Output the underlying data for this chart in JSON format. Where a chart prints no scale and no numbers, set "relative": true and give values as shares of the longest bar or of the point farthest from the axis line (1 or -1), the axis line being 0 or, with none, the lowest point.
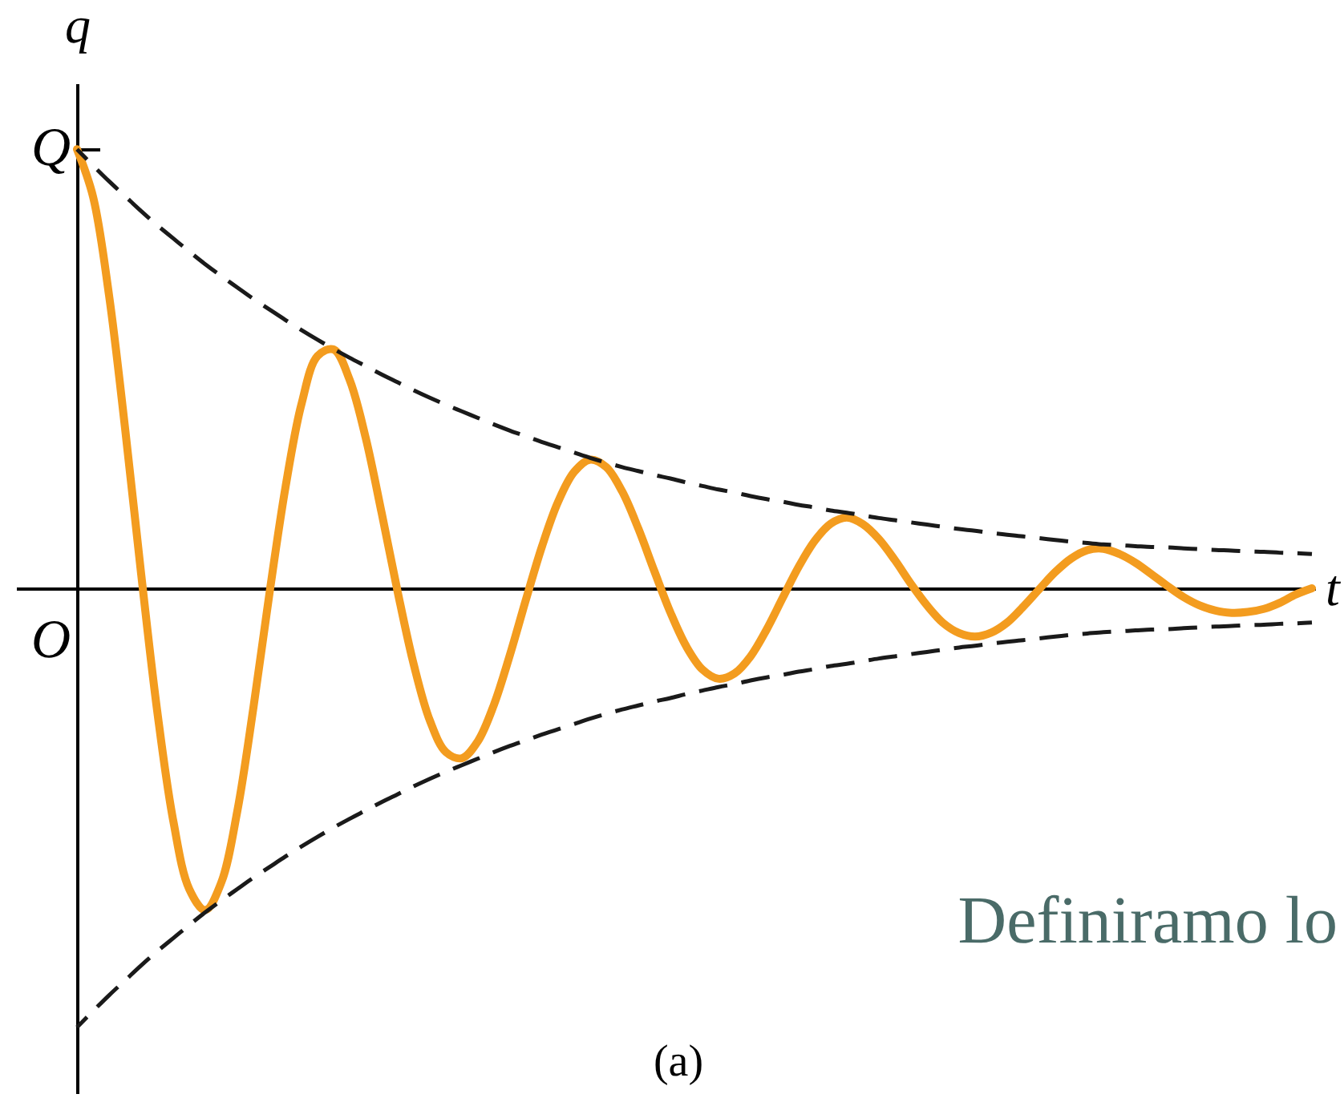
{
  "chart_data": {
    "type": "line",
    "relative": true,
    "xlabel": "t",
    "ylabel": "q",
    "categories": [
      null,
      null,
      null,
      null,
      null,
      null,
      null,
      null,
      null,
      null,
      null,
      null,
      null,
      null,
      null,
      null,
      null,
      null,
      null,
      null,
      null,
      null,
      null,
      null,
      null,
      null,
      null,
      null,
      null,
      null,
      null,
      null,
      null,
      null,
      null,
      null,
      null,
      null,
      null,
      null,
      null,
      null,
      null,
      null,
      null,
      null,
      null,
      null,
      null,
      null,
      null,
      null,
      null,
      null,
      null,
      null,
      null,
      null,
      null,
      null,
      null,
      null,
      null,
      null,
      null,
      null,
      null,
      null,
      null,
      null,
      null,
      null,
      null,
      null,
      null,
      null,
      null,
      null
    ],
    "series": [
      {
        "color": "#f39c1f",
        "line_style": "solid",
        "values": [
          1.0,
          0.892,
          0.667,
          0.364,
          0.033,
          -0.279,
          -0.529,
          -0.685,
          -0.733,
          -0.67,
          -0.507,
          -0.272,
          -0.012,
          0.23,
          0.42,
          0.529,
          0.544,
          0.475,
          0.343,
          0.171,
          -0.009,
          -0.174,
          -0.301,
          -0.373,
          -0.387,
          -0.348,
          -0.265,
          -0.151,
          -0.025,
          0.096,
          0.197,
          0.265,
          0.293,
          0.276,
          0.22,
          0.136,
          0.039,
          -0.055,
          -0.133,
          -0.185,
          -0.206,
          -0.194,
          -0.155,
          -0.094,
          -0.022,
          0.049,
          0.108,
          0.147,
          0.161,
          0.146,
          0.112,
          0.064,
          0.01,
          -0.039,
          -0.079,
          -0.102,
          -0.11,
          -0.101,
          -0.078,
          -0.042,
          -0.002,
          0.037,
          0.068,
          0.087,
          0.09,
          0.078,
          0.058,
          0.032,
          0.005,
          -0.02,
          -0.039,
          -0.051,
          -0.056,
          -0.054,
          -0.047,
          -0.033,
          -0.014,
          0.0
        ]
      },
      {
        "color": "#1a1a1a",
        "line_style": "dashed",
        "values": [
          1.0,
          0.963,
          0.927,
          0.893,
          0.859,
          0.827,
          0.797,
          0.767,
          0.738,
          0.711,
          0.685,
          0.659,
          0.635,
          0.611,
          0.588,
          0.566,
          0.545,
          0.525,
          0.506,
          0.487,
          0.469,
          0.451,
          0.434,
          0.418,
          0.403,
          0.388,
          0.373,
          0.359,
          0.346,
          0.333,
          0.321,
          0.309,
          0.297,
          0.286,
          0.276,
          0.267,
          0.258,
          0.25,
          0.241,
          0.233,
          0.225,
          0.218,
          0.21,
          0.203,
          0.197,
          0.19,
          0.184,
          0.177,
          0.172,
          0.166,
          0.16,
          0.155,
          0.15,
          0.145,
          0.14,
          0.135,
          0.131,
          0.126,
          0.122,
          0.118,
          0.114,
          0.11,
          0.106,
          0.103,
          0.1,
          0.098,
          0.096,
          0.094,
          0.093,
          0.091,
          0.089,
          0.087,
          0.086,
          0.084,
          0.083,
          0.081,
          0.08,
          0.078
        ]
      },
      {
        "color": "#1a1a1a",
        "line_style": "dashed",
        "values": [
          -1.0,
          -0.963,
          -0.927,
          -0.893,
          -0.859,
          -0.827,
          -0.797,
          -0.767,
          -0.738,
          -0.711,
          -0.685,
          -0.659,
          -0.635,
          -0.611,
          -0.588,
          -0.566,
          -0.545,
          -0.525,
          -0.506,
          -0.487,
          -0.469,
          -0.451,
          -0.434,
          -0.418,
          -0.403,
          -0.388,
          -0.373,
          -0.359,
          -0.346,
          -0.333,
          -0.321,
          -0.309,
          -0.297,
          -0.286,
          -0.276,
          -0.267,
          -0.258,
          -0.25,
          -0.241,
          -0.233,
          -0.225,
          -0.218,
          -0.21,
          -0.203,
          -0.197,
          -0.19,
          -0.184,
          -0.177,
          -0.172,
          -0.166,
          -0.16,
          -0.155,
          -0.15,
          -0.145,
          -0.14,
          -0.135,
          -0.131,
          -0.126,
          -0.122,
          -0.118,
          -0.114,
          -0.11,
          -0.106,
          -0.103,
          -0.1,
          -0.098,
          -0.096,
          -0.094,
          -0.093,
          -0.091,
          -0.089,
          -0.087,
          -0.086,
          -0.084,
          -0.083,
          -0.081,
          -0.08,
          -0.078
        ]
      }
    ],
    "annotations": [
      "Q",
      "O",
      "(a)",
      "Definiramo lo"
    ]
  }
}
